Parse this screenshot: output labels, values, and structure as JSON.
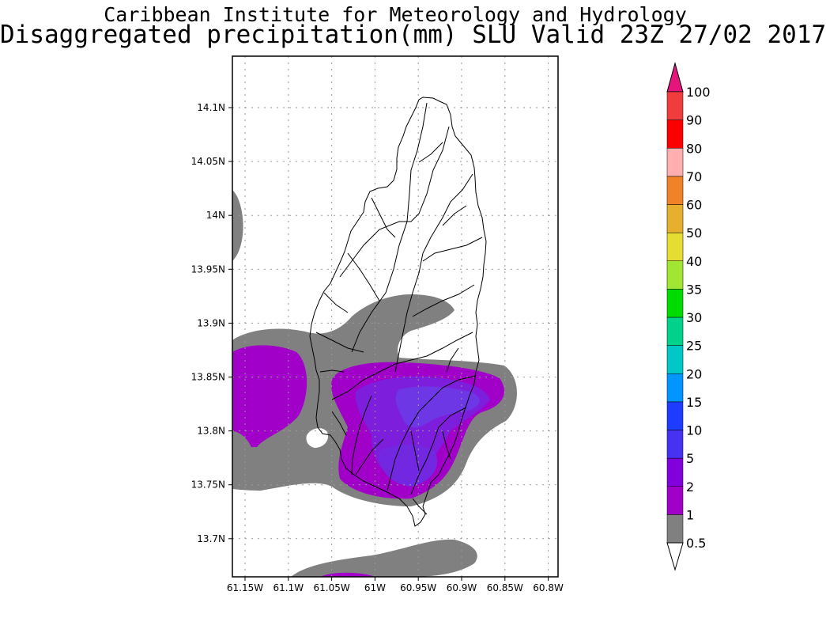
{
  "title_line1": "Caribbean Institute for Meteorology and Hydrology",
  "title_line2": "Disaggregated precipitation(mm) SLU Valid 23Z 27/02 2017",
  "lat_ticks": [
    "14.1N",
    "14.05N",
    "14N",
    "13.95N",
    "13.9N",
    "13.85N",
    "13.8N",
    "13.75N",
    "13.7N"
  ],
  "lon_ticks": [
    "61.15W",
    "61.1W",
    "61.05W",
    "61W",
    "60.95W",
    "60.9W",
    "60.85W",
    "60.8W"
  ],
  "colorbar": {
    "labels": [
      "0.5",
      "1",
      "2",
      "5",
      "10",
      "15",
      "20",
      "25",
      "30",
      "35",
      "40",
      "50",
      "60",
      "70",
      "80",
      "90",
      "100"
    ],
    "colors": [
      "#808080",
      "#a000c8",
      "#8200dc",
      "#4632f0",
      "#1e3cff",
      "#0096ff",
      "#00c8c8",
      "#00d28c",
      "#00dc00",
      "#a0e632",
      "#e6dc32",
      "#e6af2d",
      "#f08228",
      "#ffafaf",
      "#fa0000",
      "#f03c3c",
      "#e6147d"
    ],
    "under_color": "#ffffff",
    "over_color": "#e6147d"
  },
  "map": {
    "rain_colors": {
      "light": "#808080",
      "moderate": "#a000c8",
      "heavy": "#7d1edc",
      "heaviest": "#6e37e6"
    }
  }
}
